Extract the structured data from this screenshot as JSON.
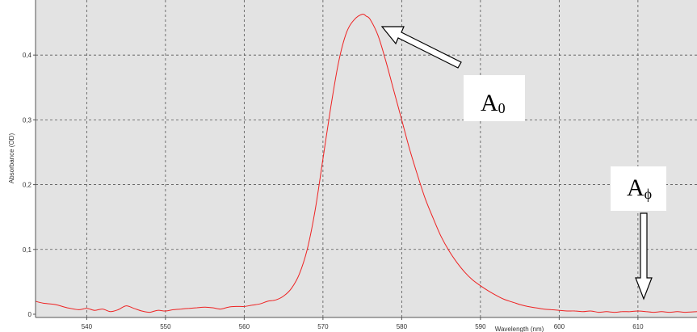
{
  "chart_data": {
    "type": "line",
    "xlabel": "Wavelength (nm)",
    "ylabel": "Absorbance (OD)",
    "xlim": [
      533.5,
      617.5
    ],
    "ylim": [
      -0.005,
      0.485
    ],
    "x_ticks": [
      540,
      550,
      560,
      570,
      580,
      590,
      600,
      610
    ],
    "x_tick_labels": [
      "540",
      "550",
      "560",
      "570",
      "580",
      "590",
      "600",
      "610"
    ],
    "y_ticks": [
      0,
      0.1,
      0.2,
      0.3,
      0.4
    ],
    "y_tick_labels": [
      "0",
      "0,1",
      "0,2",
      "0,3",
      "0,4"
    ],
    "grid": true,
    "background_color": "#e3e3e3",
    "series": [
      {
        "color": "#ee2222",
        "x": [
          533.5,
          534.5,
          536,
          537.5,
          539,
          540,
          541,
          542,
          543,
          544,
          545,
          546,
          547,
          548,
          549,
          550,
          551,
          552,
          553,
          554,
          555,
          556,
          557,
          558,
          559,
          560,
          561,
          562,
          563,
          564,
          565,
          566,
          567,
          568,
          569,
          570,
          571,
          572,
          573,
          574,
          575,
          575.5,
          576,
          577,
          578,
          579,
          580,
          581,
          582,
          583,
          584,
          585,
          586,
          587,
          588,
          589,
          590,
          591,
          592,
          593,
          594,
          595,
          596,
          597,
          598,
          599,
          600,
          601,
          602,
          603,
          604,
          605,
          606,
          607,
          608,
          609,
          610,
          611,
          612,
          613,
          614,
          615,
          616,
          617.5
        ],
        "y": [
          0.02,
          0.017,
          0.015,
          0.01,
          0.007,
          0.009,
          0.006,
          0.008,
          0.004,
          0.007,
          0.013,
          0.009,
          0.005,
          0.003,
          0.006,
          0.005,
          0.007,
          0.008,
          0.009,
          0.01,
          0.011,
          0.01,
          0.008,
          0.011,
          0.012,
          0.012,
          0.014,
          0.016,
          0.02,
          0.022,
          0.028,
          0.04,
          0.062,
          0.1,
          0.16,
          0.24,
          0.32,
          0.39,
          0.435,
          0.455,
          0.463,
          0.46,
          0.455,
          0.43,
          0.39,
          0.345,
          0.3,
          0.255,
          0.215,
          0.178,
          0.148,
          0.12,
          0.098,
          0.08,
          0.065,
          0.053,
          0.044,
          0.036,
          0.029,
          0.023,
          0.019,
          0.015,
          0.012,
          0.01,
          0.008,
          0.007,
          0.006,
          0.005,
          0.005,
          0.004,
          0.005,
          0.003,
          0.004,
          0.003,
          0.004,
          0.004,
          0.005,
          0.004,
          0.003,
          0.004,
          0.003,
          0.004,
          0.003,
          0.004
        ]
      }
    ],
    "annotations": [
      {
        "text": "A",
        "subscript": "0",
        "x": 576.3,
        "y": 0.455
      },
      {
        "text": "A",
        "subscript": "ϕ",
        "x": 610,
        "y": 0.005
      }
    ]
  }
}
